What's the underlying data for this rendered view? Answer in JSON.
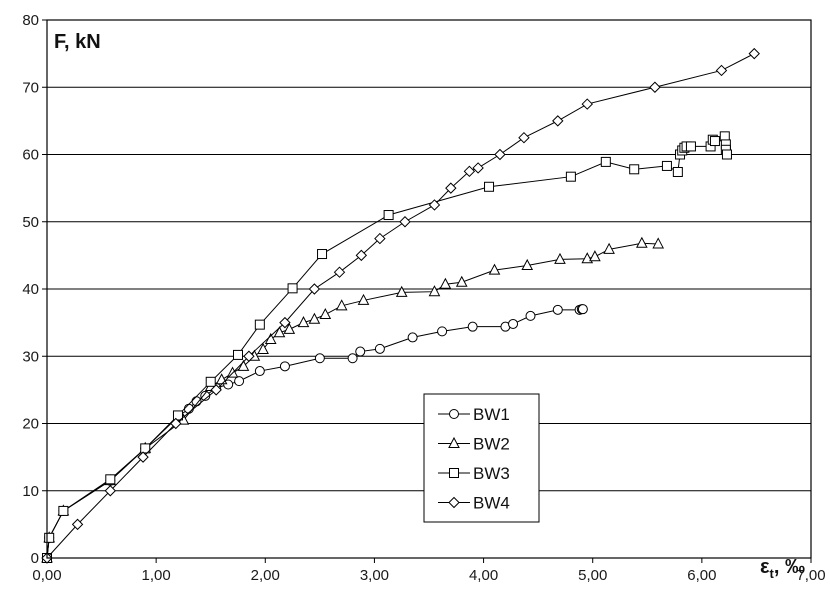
{
  "chart_data": {
    "type": "line",
    "ylabel": "F, kN",
    "xlabel": {
      "main": "ε",
      "sub": "t",
      "suffix": ", ‰"
    },
    "xlim": [
      0,
      7
    ],
    "ylim": [
      0,
      80
    ],
    "xticks": [
      0,
      1,
      2,
      3,
      4,
      5,
      6,
      7
    ],
    "xtick_labels": [
      "0,00",
      "1,00",
      "2,00",
      "3,00",
      "4,00",
      "5,00",
      "6,00",
      "7,00"
    ],
    "yticks": [
      0,
      10,
      20,
      30,
      40,
      50,
      60,
      70,
      80
    ],
    "ytick_labels": [
      "0",
      "10",
      "20",
      "30",
      "40",
      "50",
      "60",
      "70",
      "80"
    ],
    "grid": "horizontal",
    "legend_position": "bottom-center",
    "line_color": "#000000",
    "marker_fill": "#ffffff",
    "series": [
      {
        "name": "BW1",
        "marker": "circle",
        "x": [
          0.0,
          0.02,
          0.15,
          0.58,
          0.9,
          1.2,
          1.3,
          1.37,
          1.45,
          1.55,
          1.66,
          1.76,
          1.95,
          2.18,
          2.5,
          2.8,
          2.87,
          3.05,
          3.35,
          3.62,
          3.9,
          4.2,
          4.27,
          4.43,
          4.68,
          4.88,
          4.9,
          4.91
        ],
        "y": [
          0,
          3,
          7,
          11.5,
          16.3,
          21,
          22.2,
          23.3,
          24.1,
          25.3,
          25.8,
          26.3,
          27.8,
          28.5,
          29.7,
          29.7,
          30.7,
          31.1,
          32.8,
          33.7,
          34.4,
          34.4,
          34.8,
          36,
          36.9,
          36.9,
          37,
          37
        ]
      },
      {
        "name": "BW2",
        "marker": "triangle",
        "x": [
          0.0,
          0.02,
          0.15,
          0.58,
          0.9,
          1.25,
          1.5,
          1.6,
          1.7,
          1.8,
          1.9,
          1.98,
          2.05,
          2.13,
          2.22,
          2.35,
          2.45,
          2.55,
          2.7,
          2.9,
          3.25,
          3.55,
          3.65,
          3.8,
          4.1,
          4.4,
          4.7,
          4.95,
          5.02,
          5.15,
          5.45,
          5.6
        ],
        "y": [
          0,
          3,
          7,
          11.5,
          16.3,
          20.5,
          25.5,
          26.5,
          27.5,
          28.5,
          30,
          31,
          32.5,
          33.5,
          34,
          35,
          35.5,
          36.2,
          37.5,
          38.3,
          39.5,
          39.6,
          40.7,
          41,
          42.8,
          43.5,
          44.4,
          44.5,
          44.8,
          45.9,
          46.8,
          46.7
        ]
      },
      {
        "name": "BW3",
        "marker": "square",
        "x": [
          0.0,
          0.02,
          0.15,
          0.58,
          0.9,
          1.2,
          1.5,
          1.75,
          1.95,
          2.25,
          2.52,
          3.13,
          4.05,
          4.8,
          5.12,
          5.38,
          5.68,
          5.78,
          5.8,
          5.82,
          5.84,
          5.86,
          5.9,
          6.08,
          6.1,
          6.12,
          6.21,
          6.22,
          6.22,
          6.23
        ],
        "y": [
          0,
          3,
          7,
          11.7,
          16.3,
          21.2,
          26.2,
          30.2,
          34.7,
          40.1,
          45.2,
          51,
          55.2,
          56.7,
          58.9,
          57.8,
          58.3,
          57.4,
          60,
          60.6,
          61,
          61.2,
          61.2,
          61.2,
          62.2,
          62,
          62.7,
          61.5,
          60.7,
          60
        ]
      },
      {
        "name": "BW4",
        "marker": "diamond",
        "x": [
          0.0,
          0.28,
          0.58,
          0.88,
          1.18,
          1.55,
          1.85,
          2.18,
          2.45,
          2.68,
          2.88,
          3.05,
          3.28,
          3.55,
          3.7,
          3.87,
          3.95,
          4.15,
          4.37,
          4.68,
          4.95,
          5.57,
          6.18,
          6.48
        ],
        "y": [
          0,
          5,
          10,
          15,
          20,
          25,
          30,
          35,
          40,
          42.5,
          45,
          47.5,
          50,
          52.5,
          55,
          57.5,
          58,
          60,
          62.5,
          65,
          67.5,
          70,
          72.5,
          75
        ]
      }
    ]
  }
}
